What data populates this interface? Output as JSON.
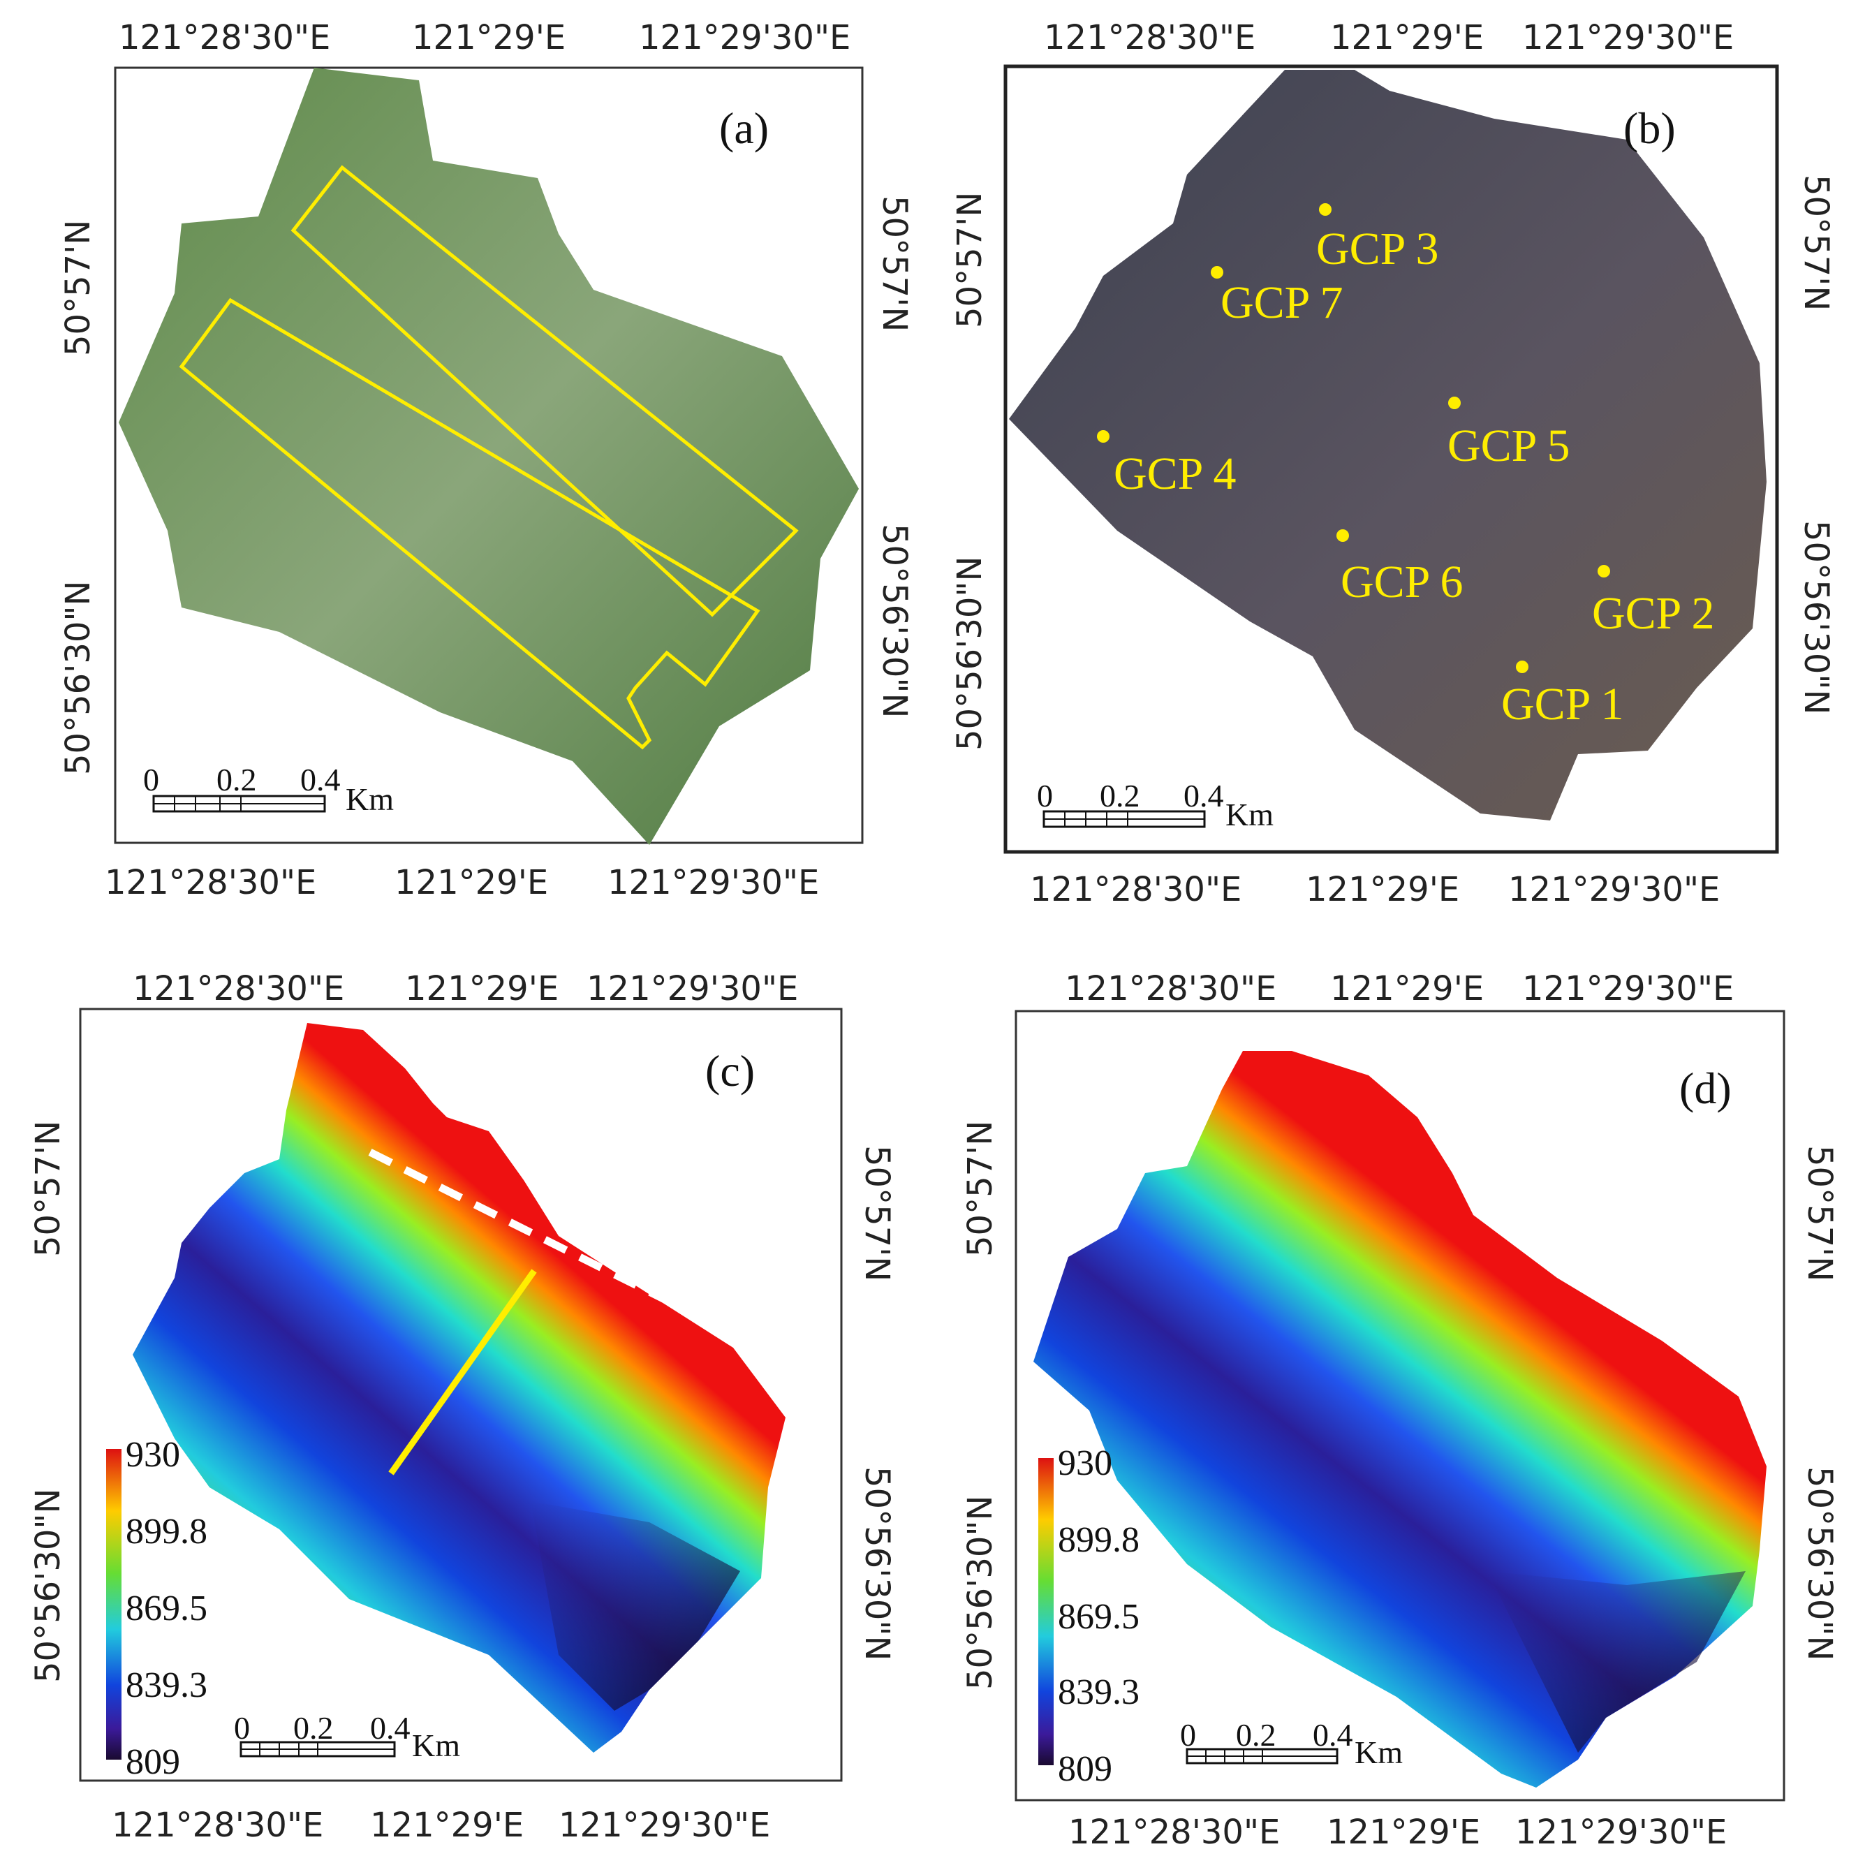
{
  "panels": {
    "a": {
      "label": "(a)",
      "top_lon": [
        "121°28'30\"E",
        "121°29'E",
        "121°29'30\"E"
      ],
      "bottom_lon": [
        "121°28'30\"E",
        "121°29'E",
        "121°29'30\"E"
      ],
      "left_lat": [
        "50°57'N",
        "50°56'30\"N"
      ],
      "right_lat": [
        "50°57'N",
        "50°56'30\"N"
      ],
      "scale": [
        "0",
        "0.2",
        "0.4",
        "Km"
      ]
    },
    "b": {
      "label": "(b)",
      "top_lon": [
        "121°28'30\"E",
        "121°29'E",
        "121°29'30\"E"
      ],
      "bottom_lon": [
        "121°28'30\"E",
        "121°29'E",
        "121°29'30\"E"
      ],
      "left_lat": [
        "50°57'N",
        "50°56'30\"N"
      ],
      "right_lat": [
        "50°57'N",
        "50°56'30\"N"
      ],
      "scale": [
        "0",
        "0.2",
        "0.4",
        "Km"
      ],
      "gcps": [
        "GCP 1",
        "GCP 2",
        "GCP 3",
        "GCP 4",
        "GCP 5",
        "GCP 6",
        "GCP 7"
      ]
    },
    "c": {
      "label": "(c)",
      "top_lon": [
        "121°28'30\"E",
        "121°29'E",
        "121°29'30\"E"
      ],
      "bottom_lon": [
        "121°28'30\"E",
        "121°29'E",
        "121°29'30\"E"
      ],
      "left_lat": [
        "50°57'N",
        "50°56'30\"N"
      ],
      "right_lat": [
        "50°57'N",
        "50°56'30\"N"
      ],
      "scale": [
        "0",
        "0.2",
        "0.4",
        "Km"
      ],
      "legend": [
        "930",
        "899.8",
        "869.5",
        "839.3",
        "809"
      ]
    },
    "d": {
      "label": "(d)",
      "top_lon": [
        "121°28'30\"E",
        "121°29'E",
        "121°29'30\"E"
      ],
      "bottom_lon": [
        "121°28'30\"E",
        "121°29'E",
        "121°29'30\"E"
      ],
      "left_lat": [
        "50°57'N",
        "50°56'30\"N"
      ],
      "right_lat": [
        "50°57'N",
        "50°56'30\"N"
      ],
      "scale": [
        "0",
        "0.2",
        "0.4",
        "Km"
      ],
      "legend": [
        "930",
        "899.8",
        "869.5",
        "839.3",
        "809"
      ]
    }
  },
  "colors": {
    "frame": "#333333",
    "yellow": "#ffee00",
    "ortho_green": "#6d8e55",
    "ortho_dark": "#4d4a55"
  }
}
